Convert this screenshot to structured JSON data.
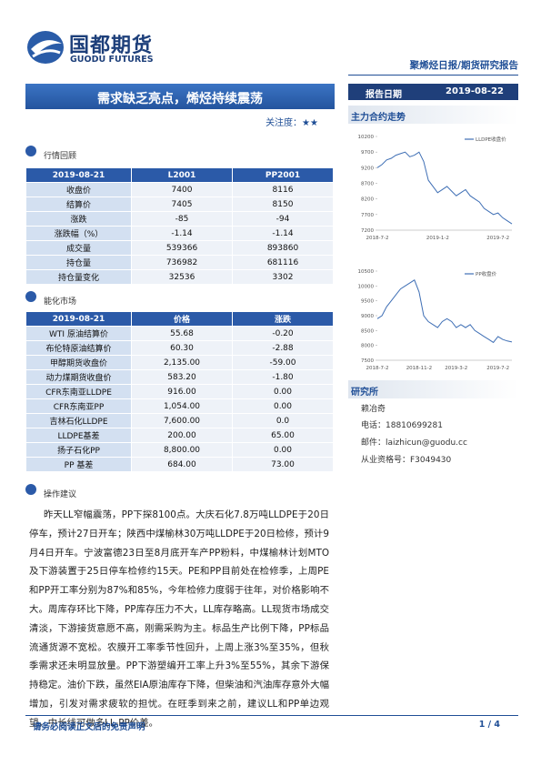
{
  "header": {
    "company": "国都期货",
    "company_en": "GUODU FUTURES",
    "report_type": "聚烯烃日报/期货研究报告",
    "date_label": "报告日期",
    "date": "2019-08-22"
  },
  "title": "需求缺乏亮点，烯烃持续震荡",
  "attention": "关注度：★★",
  "market_review": {
    "heading": "行情回顾",
    "table": {
      "header": [
        "2019-08-21",
        "L2001",
        "PP2001"
      ],
      "rows": [
        [
          "收盘价",
          "7400",
          "8116"
        ],
        [
          "结算价",
          "7405",
          "8150"
        ],
        [
          "涨跌",
          "-85",
          "-94"
        ],
        [
          "涨跌幅（%）",
          "-1.14",
          "-1.14"
        ],
        [
          "成交量",
          "539366",
          "893860"
        ],
        [
          "持仓量",
          "736982",
          "681116"
        ],
        [
          "持仓量变化",
          "32536",
          "3302"
        ]
      ]
    }
  },
  "chem_market": {
    "heading": "能化市场",
    "table": {
      "header": [
        "2019-08-21",
        "价格",
        "涨跌"
      ],
      "rows": [
        [
          "WTI 原油结算价",
          "55.68",
          "-0.20"
        ],
        [
          "布伦特原油结算价",
          "60.30",
          "-2.88"
        ],
        [
          "甲醇期货收盘价",
          "2,135.00",
          "-59.00"
        ],
        [
          "动力煤期货收盘价",
          "583.20",
          "-1.80"
        ],
        [
          "CFR东南亚LLDPE",
          "916.00",
          "0.00"
        ],
        [
          "CFR东南亚PP",
          "1,054.00",
          "0.00"
        ],
        [
          "吉林石化LLDPE",
          "7,600.00",
          "0.0"
        ],
        [
          "LLDPE基差",
          "200.00",
          "65.00"
        ],
        [
          "扬子石化PP",
          "8,800.00",
          "0.00"
        ],
        [
          "PP 基差",
          "684.00",
          "73.00"
        ]
      ]
    }
  },
  "advice": {
    "heading": "操作建议",
    "text": "昨天LL窄幅震荡，PP下探8100点。大庆石化7.8万吨LLDPE于20日停车，预计27日开车；陕西中煤榆林30万吨LLDPE于20日检修，预计9月4日开车。宁波富德23日至8月底开车产PP粉料，中煤榆林计划MTO及下游装置于25日停车检修约15天。PE和PP目前处在检修季，上周PE和PP开工率分别为87%和85%，今年检修力度弱于往年，对价格影响不大。周库存环比下降，PP库存压力不大，LL库存略高。LL现货市场成交清淡，下游接货意愿不高，刚需采购为主。标品生产比例下降，PP标品流通货源不宽松。农膜开工率季节性回升，上周上涨3%至35%，但秋季需求还未明显放量。PP下游塑编开工率上升3%至55%，其余下游保持稳定。油价下跌，虽然EIA原油库存下降，但柴油和汽油库存意外大幅增加，引发对需求疲软的担忧。在旺季到来之前，建议LL和PP单边观望，中长线可做多LL-PP价差。"
  },
  "charts_heading": "主力合约走势",
  "chart_data": [
    {
      "type": "line",
      "categories": [
        "2018-7-2",
        null,
        null,
        null,
        null,
        null,
        null,
        null,
        null,
        null,
        null,
        null,
        null,
        "2019-1-2",
        null,
        null,
        null,
        null,
        null,
        null,
        null,
        null,
        null,
        null,
        null,
        null,
        "2019-7-2",
        null,
        null,
        null
      ],
      "series": [
        {
          "name": "LLDPE收盘价",
          "color": "#3f6fb5",
          "values": [
            9200,
            9300,
            9450,
            9500,
            9600,
            9650,
            9700,
            9550,
            9600,
            9700,
            9400,
            8800,
            8600,
            8400,
            8500,
            8600,
            8450,
            8300,
            8400,
            8500,
            8300,
            8200,
            8100,
            7900,
            7800,
            7700,
            7750,
            7600,
            7500,
            7400
          ]
        }
      ],
      "ylim": [
        7200,
        10200
      ],
      "yticks": [
        7200,
        7700,
        8200,
        8700,
        9200,
        9700,
        10200
      ]
    },
    {
      "type": "line",
      "categories": [
        "2018-7-2",
        null,
        null,
        null,
        null,
        null,
        null,
        null,
        null,
        "2018-11-2",
        null,
        null,
        null,
        null,
        null,
        null,
        null,
        "2019-3-2",
        null,
        null,
        null,
        null,
        null,
        null,
        null,
        null,
        "2019-7-2",
        null,
        null,
        null
      ],
      "series": [
        {
          "name": "PP收盘价",
          "color": "#3f6fb5",
          "values": [
            8900,
            9000,
            9300,
            9500,
            9700,
            9900,
            10000,
            10100,
            10200,
            9800,
            9000,
            8800,
            8700,
            8600,
            8800,
            8900,
            8800,
            8600,
            8700,
            8600,
            8700,
            8500,
            8400,
            8300,
            8200,
            8100,
            8300,
            8200,
            8150,
            8116
          ]
        }
      ],
      "ylim": [
        7500,
        10500
      ],
      "yticks": [
        7500,
        8000,
        8500,
        9000,
        9500,
        10000,
        10500
      ]
    }
  ],
  "research": {
    "heading": "研究所",
    "analyst": "赖冶奇",
    "phone": "电话：18810699281",
    "email": "邮件：laizhicun@guodu.cc",
    "license": "从业资格号：F3049430"
  },
  "footer": {
    "disclaimer": "请务必阅读正文后的免责声明",
    "page": "1 / 4"
  }
}
